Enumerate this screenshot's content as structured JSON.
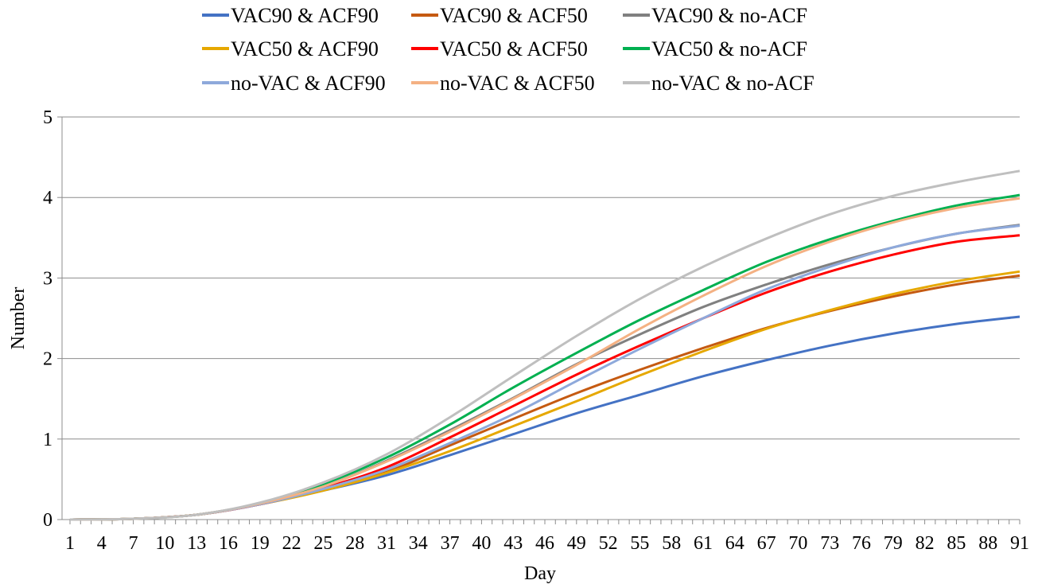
{
  "chart_data": {
    "type": "line",
    "title": "",
    "xlabel": "Day",
    "ylabel": "Number",
    "ylim": [
      0,
      5
    ],
    "yticks": [
      0,
      1,
      2,
      3,
      4,
      5
    ],
    "xlim": [
      1,
      91
    ],
    "xtick_labels": [
      "1",
      "4",
      "7",
      "10",
      "13",
      "16",
      "19",
      "22",
      "25",
      "28",
      "31",
      "34",
      "37",
      "40",
      "43",
      "46",
      "49",
      "52",
      "55",
      "58",
      "61",
      "64",
      "67",
      "70",
      "73",
      "76",
      "79",
      "82",
      "85",
      "88",
      "91"
    ],
    "grid": "horizontal",
    "legend_position": "top",
    "x": [
      1,
      7,
      13,
      19,
      25,
      31,
      37,
      43,
      49,
      55,
      61,
      67,
      73,
      79,
      85,
      91
    ],
    "series": [
      {
        "name": "VAC90 & ACF90",
        "color": "#4472C4",
        "values": [
          0,
          0.01,
          0.06,
          0.19,
          0.36,
          0.55,
          0.8,
          1.06,
          1.32,
          1.55,
          1.78,
          1.98,
          2.16,
          2.31,
          2.43,
          2.52
        ]
      },
      {
        "name": "VAC90 & ACF50",
        "color": "#C55A11",
        "values": [
          0,
          0.01,
          0.06,
          0.19,
          0.37,
          0.59,
          0.92,
          1.25,
          1.57,
          1.86,
          2.13,
          2.38,
          2.59,
          2.77,
          2.92,
          3.03
        ]
      },
      {
        "name": "VAC90 & no-ACF",
        "color": "#808080",
        "values": [
          0,
          0.01,
          0.06,
          0.2,
          0.41,
          0.73,
          1.11,
          1.51,
          1.93,
          2.3,
          2.64,
          2.92,
          3.17,
          3.38,
          3.55,
          3.66
        ]
      },
      {
        "name": "VAC50 & ACF90",
        "color": "#E6A800",
        "values": [
          0,
          0.01,
          0.06,
          0.19,
          0.36,
          0.58,
          0.85,
          1.16,
          1.47,
          1.79,
          2.09,
          2.37,
          2.6,
          2.8,
          2.96,
          3.08
        ]
      },
      {
        "name": "VAC50 & ACF50",
        "color": "#FF0000",
        "values": [
          0,
          0.01,
          0.06,
          0.19,
          0.39,
          0.65,
          1.02,
          1.41,
          1.8,
          2.16,
          2.5,
          2.82,
          3.08,
          3.29,
          3.45,
          3.53
        ]
      },
      {
        "name": "VAC50 & no-ACF",
        "color": "#00B050",
        "values": [
          0,
          0.01,
          0.06,
          0.2,
          0.44,
          0.77,
          1.18,
          1.64,
          2.07,
          2.48,
          2.85,
          3.2,
          3.48,
          3.71,
          3.9,
          4.03
        ]
      },
      {
        "name": "no-VAC & ACF90",
        "color": "#8EA9DB",
        "values": [
          0,
          0.01,
          0.06,
          0.19,
          0.38,
          0.62,
          0.95,
          1.31,
          1.72,
          2.12,
          2.5,
          2.86,
          3.14,
          3.38,
          3.55,
          3.65
        ]
      },
      {
        "name": "no-VAC & ACF50",
        "color": "#F4B183",
        "values": [
          0,
          0.01,
          0.06,
          0.2,
          0.41,
          0.72,
          1.09,
          1.5,
          1.92,
          2.37,
          2.78,
          3.15,
          3.45,
          3.69,
          3.87,
          3.99
        ]
      },
      {
        "name": "no-VAC & no-ACF",
        "color": "#BFBFBF",
        "values": [
          0,
          0.01,
          0.06,
          0.21,
          0.46,
          0.81,
          1.27,
          1.78,
          2.28,
          2.74,
          3.14,
          3.49,
          3.79,
          4.02,
          4.19,
          4.33
        ]
      }
    ]
  }
}
